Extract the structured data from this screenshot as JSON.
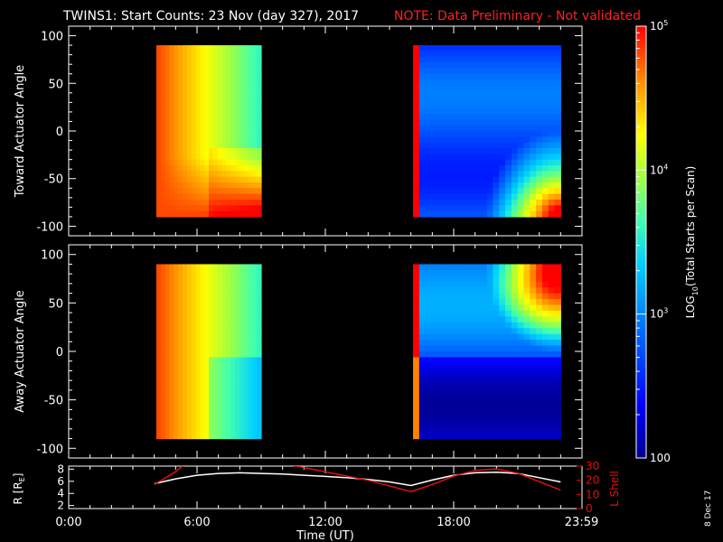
{
  "header": {
    "title": "TWINS1: Start Counts: 23 Nov (day 327), 2017",
    "note": "NOTE: Data Preliminary - Not validated"
  },
  "footer": {
    "date_stamp": "8 Dec 17",
    "xlabel": "Time (UT)"
  },
  "colors": {
    "background": "#000000",
    "axes": "#ffffff",
    "note": "#ff2020",
    "lshell": "#e01010",
    "radius": "#ffffff"
  },
  "chart_data": [
    {
      "type": "heatmap",
      "title": "",
      "ylabel": "Toward Actuator Angle",
      "xlabel": "",
      "xlim": [
        0,
        24
      ],
      "ylim": [
        -110,
        110
      ],
      "y_ticks": [
        -100,
        -50,
        0,
        50,
        100
      ],
      "x_ticks": [],
      "blocks": [
        {
          "t_start": 4.1,
          "t_end": 9.0,
          "angle_min": -90,
          "angle_max": 90,
          "level": "high",
          "log_counts_min": 3.6,
          "log_counts_max": 5.0
        },
        {
          "t_start": 16.1,
          "t_end": 23.0,
          "angle_min": -90,
          "angle_max": 90,
          "level": "low",
          "log_counts_min": 2.2,
          "log_counts_max": 5.0
        }
      ]
    },
    {
      "type": "heatmap",
      "title": "",
      "ylabel": "Away Actuator Angle",
      "xlabel": "",
      "xlim": [
        0,
        24
      ],
      "ylim": [
        -110,
        110
      ],
      "y_ticks": [
        -100,
        -50,
        0,
        50,
        100
      ],
      "x_ticks": [],
      "blocks": [
        {
          "t_start": 4.1,
          "t_end": 9.0,
          "angle_min": -90,
          "angle_max": 90,
          "level": "high",
          "log_counts_min": 3.3,
          "log_counts_max": 5.0
        },
        {
          "t_start": 16.1,
          "t_end": 23.0,
          "angle_min": -90,
          "angle_max": 90,
          "level": "low",
          "log_counts_min": 2.0,
          "log_counts_max": 5.0
        }
      ]
    },
    {
      "type": "line",
      "title": "",
      "xlabel": "Time (UT)",
      "ylabel": "R [RE]",
      "ylabel_main": "R [R",
      "ylabel_sub": "E",
      "ylabel_end": "]",
      "y2label": "L Shell",
      "xlim": [
        0,
        24
      ],
      "ylim": [
        1.5,
        8.5
      ],
      "y2lim": [
        0,
        30
      ],
      "x_tick_labels": [
        "0:00",
        "6:00",
        "12:00",
        "18:00",
        "23:59"
      ],
      "x_tick_values": [
        0,
        6,
        12,
        18,
        23.98
      ],
      "y_ticks": [
        2,
        4,
        6,
        8
      ],
      "y2_ticks": [
        0,
        10,
        20,
        30
      ],
      "series": [
        {
          "axis": "left",
          "color": "#ffffff",
          "x": [
            4.0,
            5.0,
            6.0,
            7.0,
            8.0,
            9.0,
            10.0,
            11.0,
            12.0,
            13.0,
            14.0,
            15.0,
            16.0,
            17.0,
            18.0,
            19.0,
            20.0,
            21.0,
            22.0,
            23.0
          ],
          "y": [
            5.6,
            6.4,
            7.0,
            7.3,
            7.4,
            7.3,
            7.2,
            7.0,
            6.8,
            6.6,
            6.3,
            5.9,
            5.3,
            6.2,
            7.0,
            7.4,
            7.5,
            7.3,
            6.6,
            5.9
          ]
        },
        {
          "axis": "right",
          "color": "#e01010",
          "x": [
            4.0,
            5.0,
            5.4
          ],
          "y": [
            17.0,
            26.0,
            31.0
          ]
        },
        {
          "axis": "right",
          "color": "#e01010",
          "x": [
            10.3,
            12.0,
            14.0,
            16.0,
            17.0,
            18.0,
            19.0,
            20.0,
            21.0,
            22.0,
            23.0
          ],
          "y": [
            31.0,
            26.0,
            20.0,
            12.0,
            17.0,
            23.0,
            27.0,
            28.0,
            25.0,
            19.0,
            13.0
          ]
        }
      ]
    }
  ],
  "colorbar": {
    "label": "LOG10(Total Starts per Scan)",
    "label_main": "LOG",
    "label_sub": "10",
    "label_end": "(Total Starts per Scan)",
    "range_log": [
      2,
      5
    ],
    "ticks": [
      {
        "value": 5,
        "base": "10",
        "exp": "5"
      },
      {
        "value": 4,
        "base": "10",
        "exp": "4"
      },
      {
        "value": 3,
        "base": "10",
        "exp": "3"
      },
      {
        "value": 2,
        "base": "100",
        "exp": ""
      }
    ]
  }
}
